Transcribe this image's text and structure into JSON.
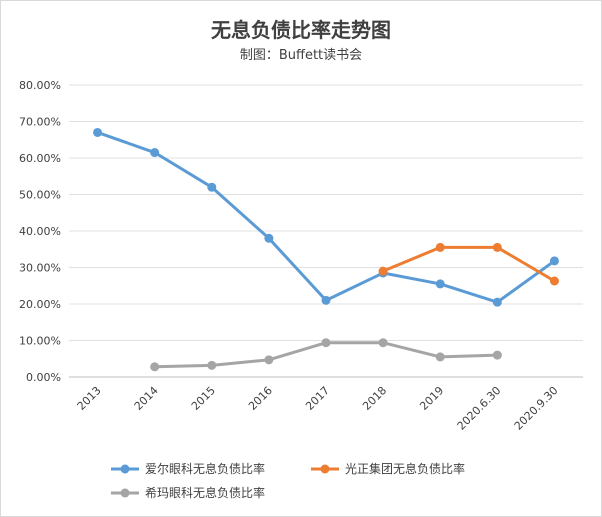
{
  "chart_data": {
    "type": "line",
    "title": "无息负债比率走势图",
    "subtitle": "制图：Buffett读书会",
    "categories": [
      "2013",
      "2014",
      "2015",
      "2016",
      "2017",
      "2018",
      "2019",
      "2020.6.30",
      "2020.9.30"
    ],
    "y_ticks": [
      "0.00%",
      "10.00%",
      "20.00%",
      "30.00%",
      "40.00%",
      "50.00%",
      "60.00%",
      "70.00%",
      "80.00%"
    ],
    "ylim": [
      0,
      80
    ],
    "y_unit": "%",
    "grid": true,
    "legend_position": "bottom",
    "series": [
      {
        "name": "爱尔眼科无息负债比率",
        "color": "#5B9BD5",
        "values": [
          67.0,
          61.5,
          52.0,
          38.0,
          21.0,
          28.5,
          25.5,
          20.5,
          31.8
        ]
      },
      {
        "name": "光正集团无息负债比率",
        "color": "#ED7D31",
        "values": [
          null,
          null,
          null,
          null,
          null,
          29.0,
          35.5,
          35.5,
          26.3
        ]
      },
      {
        "name": "希玛眼科无息负债比率",
        "color": "#A5A5A5",
        "values": [
          null,
          2.8,
          3.2,
          4.7,
          9.4,
          9.4,
          5.5,
          6.0,
          null
        ]
      }
    ]
  }
}
